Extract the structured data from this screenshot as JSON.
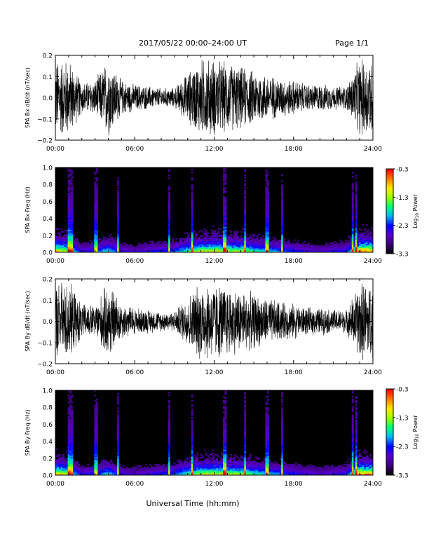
{
  "header": {
    "title": "2017/05/22  00:00–24:00 UT",
    "page": "Page 1/1"
  },
  "footer": {
    "xlabel": "Universal Time (hh:mm)"
  },
  "colorbar": {
    "label_main": "Log",
    "label_sub": "10",
    "label_tail": " Power",
    "ticks": [
      "-0.3",
      "-1.3",
      "-2.3",
      "-3.3"
    ],
    "tick_values": [
      -0.3,
      -1.3,
      -2.3,
      -3.3
    ],
    "range": [
      -3.3,
      -0.3
    ],
    "colors": [
      "#000000",
      "#3c0078",
      "#5a00c8",
      "#0000ff",
      "#00b4ff",
      "#00ff78",
      "#a0ff00",
      "#ffe600",
      "#ff7800",
      "#ff0000"
    ]
  },
  "chart_data": [
    {
      "type": "line",
      "id": "bx",
      "ylabel": "SPA Bx dB/dt (nT/sec)",
      "ylim": [
        -0.2,
        0.2
      ],
      "yticks": [
        -0.2,
        -0.1,
        0.0,
        0.1,
        0.2
      ],
      "ytick_labels": [
        "−0.2",
        "−0.1",
        "0.0",
        "0.1",
        "0.2"
      ],
      "xlim": [
        0,
        24
      ],
      "xtick_labels": [
        "00:00",
        "06:00",
        "12:00",
        "18:00",
        "24:00"
      ],
      "x_hours": [
        0,
        1,
        2,
        3,
        4,
        5,
        6,
        7,
        8,
        9,
        10,
        11,
        12,
        13,
        14,
        15,
        16,
        17,
        18,
        19,
        20,
        21,
        22,
        23,
        24
      ],
      "amplitude": [
        0.2,
        0.2,
        0.08,
        0.09,
        0.2,
        0.09,
        0.07,
        0.06,
        0.05,
        0.05,
        0.13,
        0.2,
        0.2,
        0.18,
        0.16,
        0.14,
        0.12,
        0.1,
        0.09,
        0.07,
        0.07,
        0.06,
        0.06,
        0.2,
        0.2
      ]
    },
    {
      "type": "heatmap",
      "id": "bx-spec",
      "ylabel": "SPA Bx Freq (Hz)",
      "ylim": [
        0,
        1.0
      ],
      "yticks": [
        0.0,
        0.2,
        0.4,
        0.6,
        0.8,
        1.0
      ],
      "ytick_labels": [
        "0.0",
        "0.2",
        "0.4",
        "0.6",
        "0.8",
        "1.0"
      ],
      "xlim": [
        0,
        24
      ],
      "xtick_labels": [
        "00:00",
        "06:00",
        "12:00",
        "18:00",
        "24:00"
      ],
      "zlim": [
        -3.3,
        -0.3
      ],
      "activity": [
        0.9,
        0.7,
        0.3,
        0.35,
        0.55,
        0.3,
        0.25,
        0.3,
        0.35,
        0.4,
        0.6,
        0.75,
        0.8,
        0.75,
        0.7,
        0.6,
        0.5,
        0.45,
        0.35,
        0.3,
        0.25,
        0.3,
        0.35,
        0.95,
        0.9
      ]
    },
    {
      "type": "line",
      "id": "by",
      "ylabel": "SPA By dB/dt (nT/sec)",
      "ylim": [
        -0.2,
        0.2
      ],
      "yticks": [
        -0.2,
        -0.1,
        0.0,
        0.1,
        0.2
      ],
      "ytick_labels": [
        "−0.2",
        "−0.1",
        "0.0",
        "0.1",
        "0.2"
      ],
      "xlim": [
        0,
        24
      ],
      "xtick_labels": [
        "00:00",
        "06:00",
        "12:00",
        "18:00",
        "24:00"
      ],
      "x_hours": [
        0,
        1,
        2,
        3,
        4,
        5,
        6,
        7,
        8,
        9,
        10,
        11,
        12,
        13,
        14,
        15,
        16,
        17,
        18,
        19,
        20,
        21,
        22,
        23,
        24
      ],
      "amplitude": [
        0.2,
        0.2,
        0.09,
        0.08,
        0.2,
        0.09,
        0.07,
        0.06,
        0.05,
        0.05,
        0.13,
        0.2,
        0.2,
        0.18,
        0.16,
        0.14,
        0.12,
        0.1,
        0.09,
        0.07,
        0.07,
        0.06,
        0.06,
        0.2,
        0.2
      ]
    },
    {
      "type": "heatmap",
      "id": "by-spec",
      "ylabel": "SPA By Freq (Hz)",
      "ylim": [
        0,
        1.0
      ],
      "yticks": [
        0.0,
        0.2,
        0.4,
        0.6,
        0.8,
        1.0
      ],
      "ytick_labels": [
        "0.0",
        "0.2",
        "0.4",
        "0.6",
        "0.8",
        "1.0"
      ],
      "xlim": [
        0,
        24
      ],
      "xtick_labels": [
        "00:00",
        "06:00",
        "12:00",
        "18:00",
        "24:00"
      ],
      "zlim": [
        -3.3,
        -0.3
      ],
      "activity": [
        0.9,
        0.7,
        0.3,
        0.35,
        0.55,
        0.3,
        0.25,
        0.3,
        0.35,
        0.4,
        0.6,
        0.75,
        0.8,
        0.75,
        0.7,
        0.6,
        0.5,
        0.45,
        0.35,
        0.3,
        0.25,
        0.3,
        0.35,
        0.95,
        0.9
      ]
    }
  ]
}
